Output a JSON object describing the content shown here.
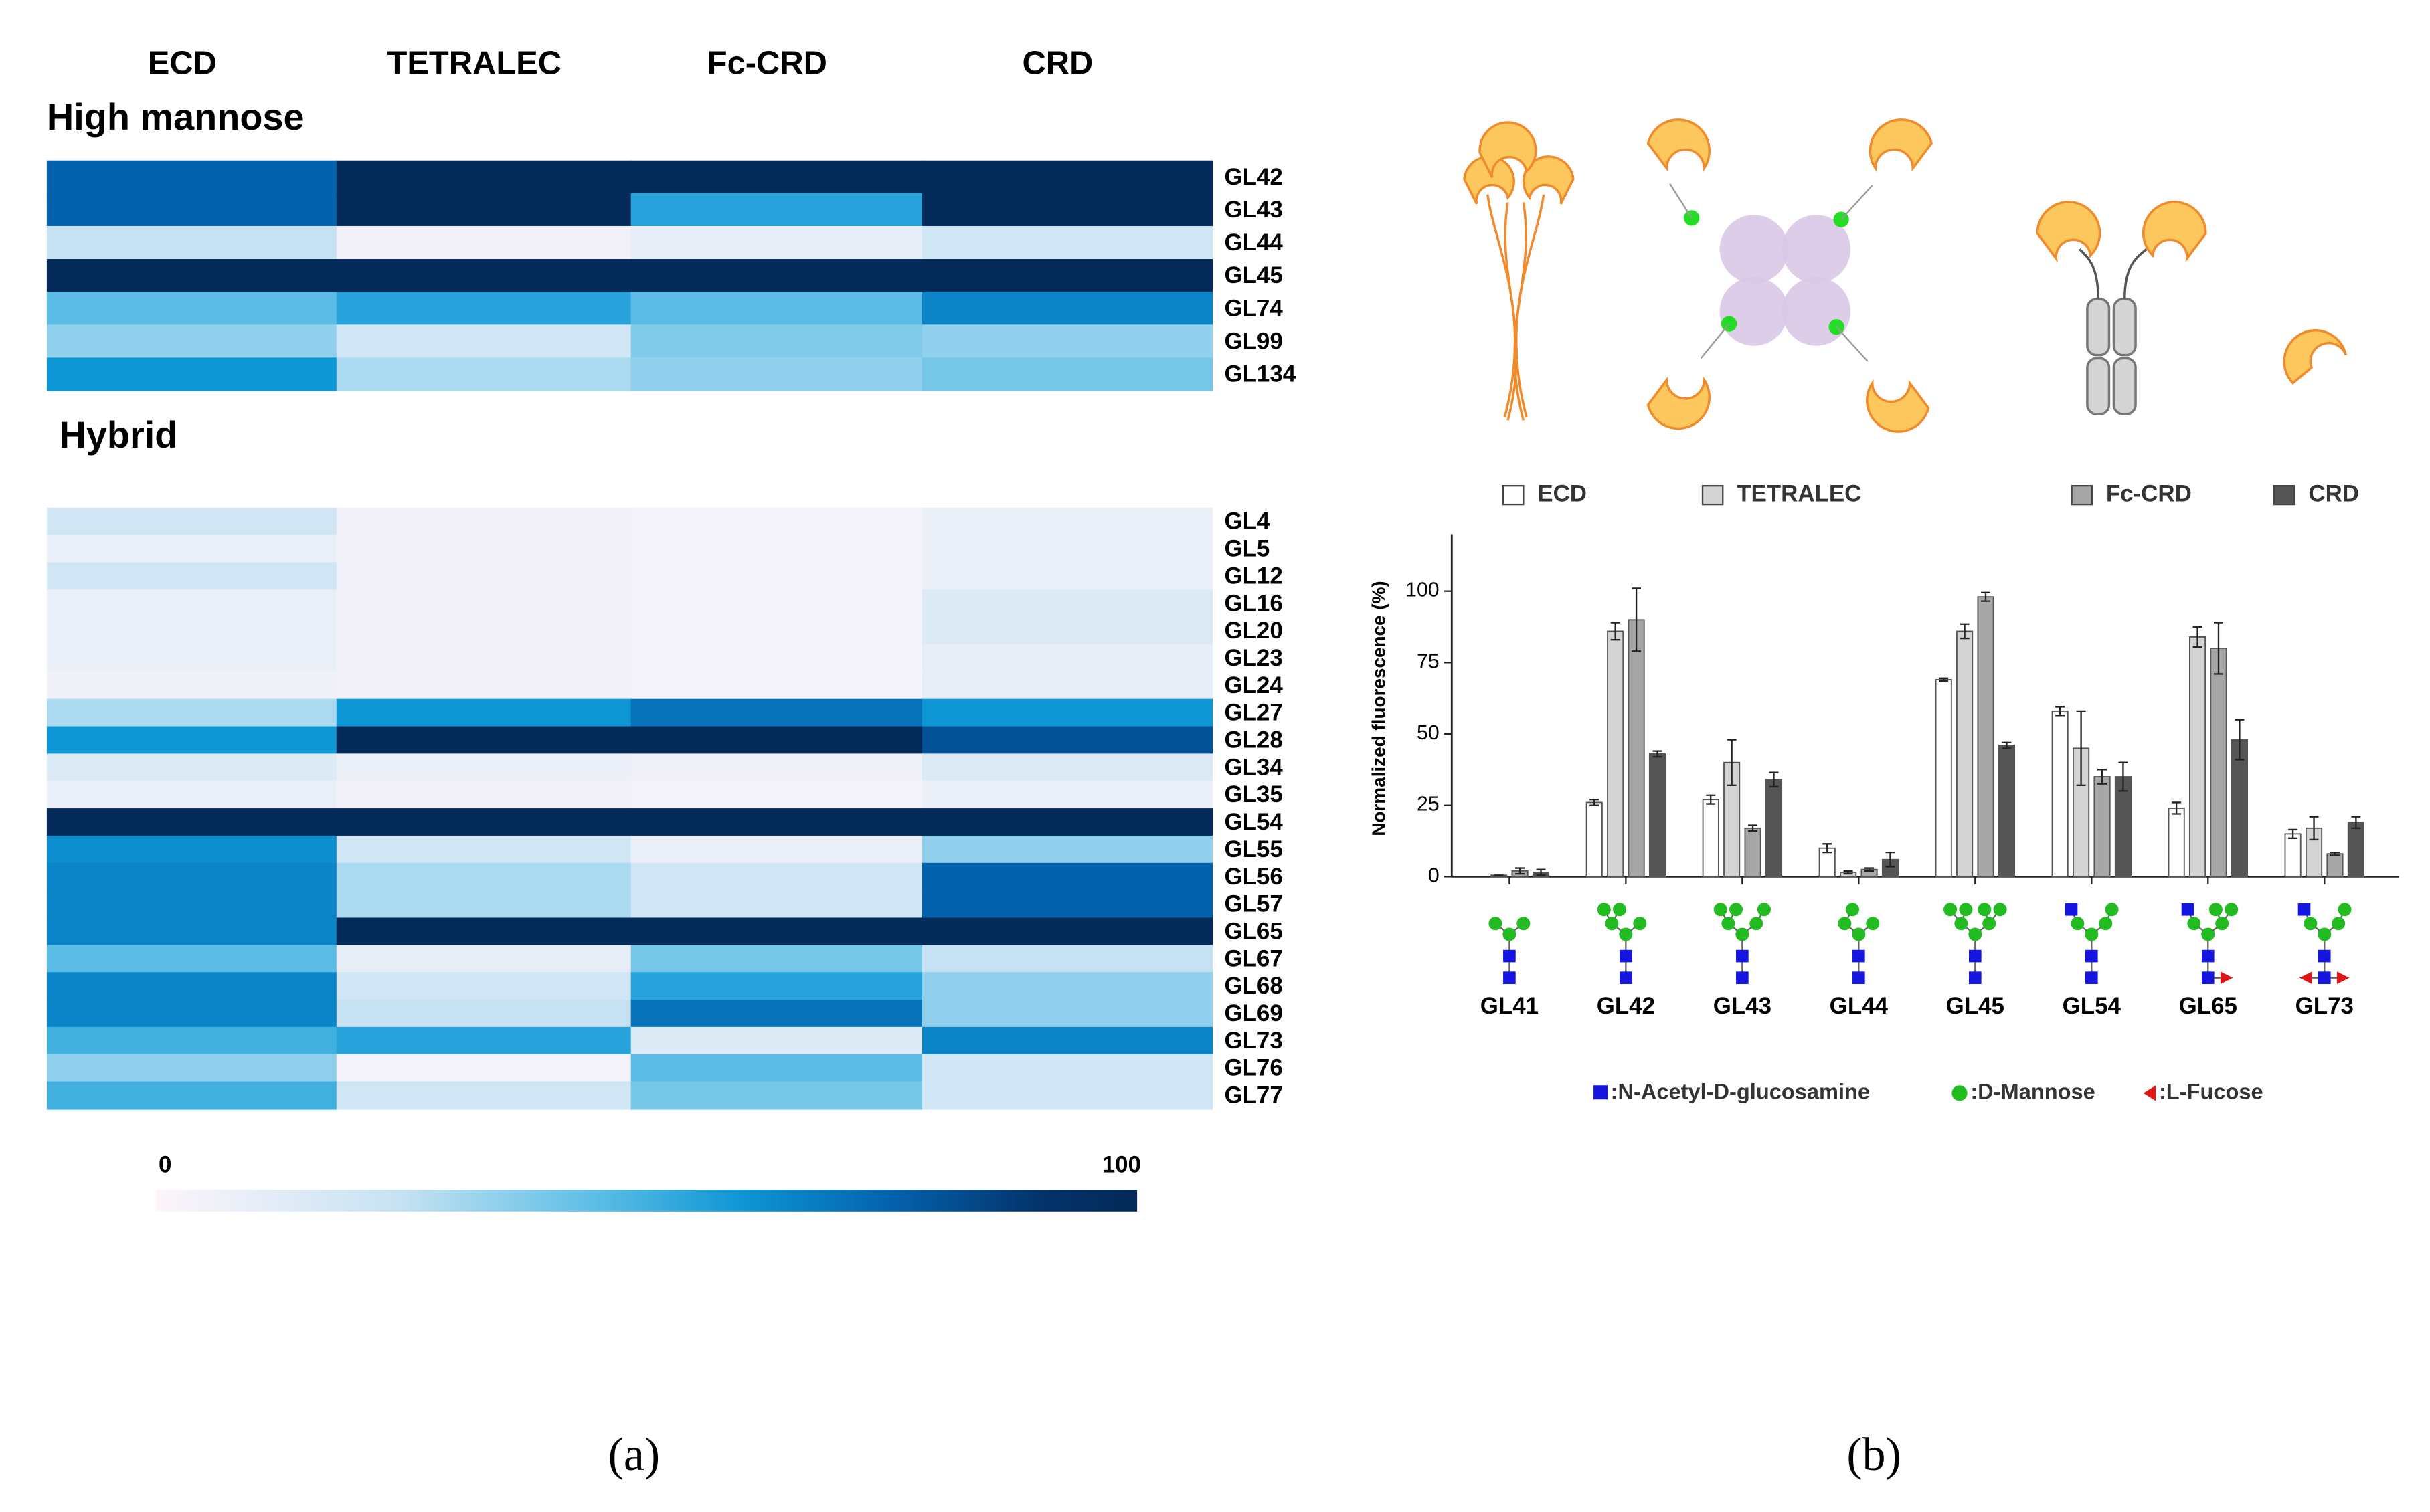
{
  "panel_labels": [
    "(a)",
    "(b)"
  ],
  "chart_data": [
    {
      "type": "heatmap",
      "columns": [
        "ECD",
        "TETRALEC",
        "Fc-CRD",
        "CRD"
      ],
      "groups": [
        {
          "name": "High mannose",
          "rows": [
            "GL42",
            "GL43",
            "GL44",
            "GL45",
            "GL74",
            "GL99",
            "GL134"
          ],
          "values": [
            [
              75,
              100,
              100,
              100
            ],
            [
              75,
              100,
              55,
              100
            ],
            [
              25,
              5,
              10,
              20
            ],
            [
              100,
              100,
              100,
              100
            ],
            [
              45,
              55,
              45,
              65
            ],
            [
              35,
              20,
              38,
              35
            ],
            [
              60,
              30,
              35,
              40
            ]
          ]
        },
        {
          "name": "Hybrid",
          "rows": [
            "GL4",
            "GL5",
            "GL12",
            "GL16",
            "GL20",
            "GL23",
            "GL24",
            "GL27",
            "GL28",
            "GL34",
            "GL35",
            "GL54",
            "GL55",
            "GL56",
            "GL57",
            "GL65",
            "GL67",
            "GL68",
            "GL69",
            "GL73",
            "GL76",
            "GL77"
          ],
          "values": [
            [
              20,
              5,
              4,
              8
            ],
            [
              8,
              5,
              4,
              8
            ],
            [
              20,
              5,
              4,
              8
            ],
            [
              8,
              5,
              4,
              15
            ],
            [
              8,
              5,
              4,
              15
            ],
            [
              8,
              5,
              4,
              10
            ],
            [
              6,
              5,
              4,
              10
            ],
            [
              30,
              60,
              70,
              60
            ],
            [
              60,
              100,
              100,
              80
            ],
            [
              15,
              8,
              6,
              15
            ],
            [
              8,
              5,
              4,
              8
            ],
            [
              100,
              100,
              100,
              100
            ],
            [
              62,
              20,
              8,
              35
            ],
            [
              65,
              30,
              20,
              75
            ],
            [
              65,
              30,
              20,
              75
            ],
            [
              65,
              100,
              100,
              100
            ],
            [
              45,
              10,
              40,
              25
            ],
            [
              65,
              20,
              55,
              35
            ],
            [
              65,
              25,
              70,
              35
            ],
            [
              50,
              55,
              15,
              65
            ],
            [
              35,
              4,
              45,
              20
            ],
            [
              50,
              20,
              40,
              20
            ]
          ]
        }
      ],
      "zlim": [
        0,
        100
      ],
      "zticks": [
        0,
        100
      ],
      "colormap": [
        [
          0,
          "#fdf5fb"
        ],
        [
          25,
          "#c6e2f2"
        ],
        [
          45,
          "#5bbde5"
        ],
        [
          60,
          "#0d95d4"
        ],
        [
          75,
          "#0462ad"
        ],
        [
          90,
          "#03336b"
        ],
        [
          100,
          "#032a58"
        ]
      ]
    },
    {
      "type": "bar",
      "ylabel": "Normalized fluorescence (%)",
      "categories": [
        "GL41",
        "GL42",
        "GL43",
        "GL44",
        "GL45",
        "GL54",
        "GL65",
        "GL73"
      ],
      "series": [
        {
          "name": "ECD",
          "color": "#ffffff",
          "values": [
            0,
            26,
            27,
            10,
            69,
            58,
            24,
            15
          ],
          "errors": [
            0,
            1,
            1.5,
            1.5,
            0.5,
            1.5,
            2,
            1.5
          ]
        },
        {
          "name": "TETRALEC",
          "color": "#d4d4d4",
          "values": [
            0.5,
            86,
            40,
            1.5,
            86,
            45,
            84,
            17
          ],
          "errors": [
            0,
            3,
            8,
            0.5,
            2.5,
            13,
            3.5,
            4
          ]
        },
        {
          "name": "Fc-CRD",
          "color": "#a6a6a6",
          "values": [
            2,
            90,
            17,
            2.5,
            98,
            35,
            80,
            8
          ],
          "errors": [
            1,
            11,
            1,
            0.5,
            1.5,
            2.5,
            9,
            0.5
          ]
        },
        {
          "name": "CRD",
          "color": "#555555",
          "values": [
            1.5,
            43,
            34,
            6,
            46,
            35,
            48,
            19
          ],
          "errors": [
            1,
            1,
            2.5,
            2.5,
            1,
            5,
            7,
            2
          ]
        }
      ],
      "ylim": [
        0,
        120
      ],
      "yticks": [
        0,
        25,
        50,
        75,
        100
      ],
      "symbol_legend": [
        ":N-Acetyl-D-glucosamine",
        ":D-Mannose",
        ":L-Fucose"
      ]
    }
  ]
}
